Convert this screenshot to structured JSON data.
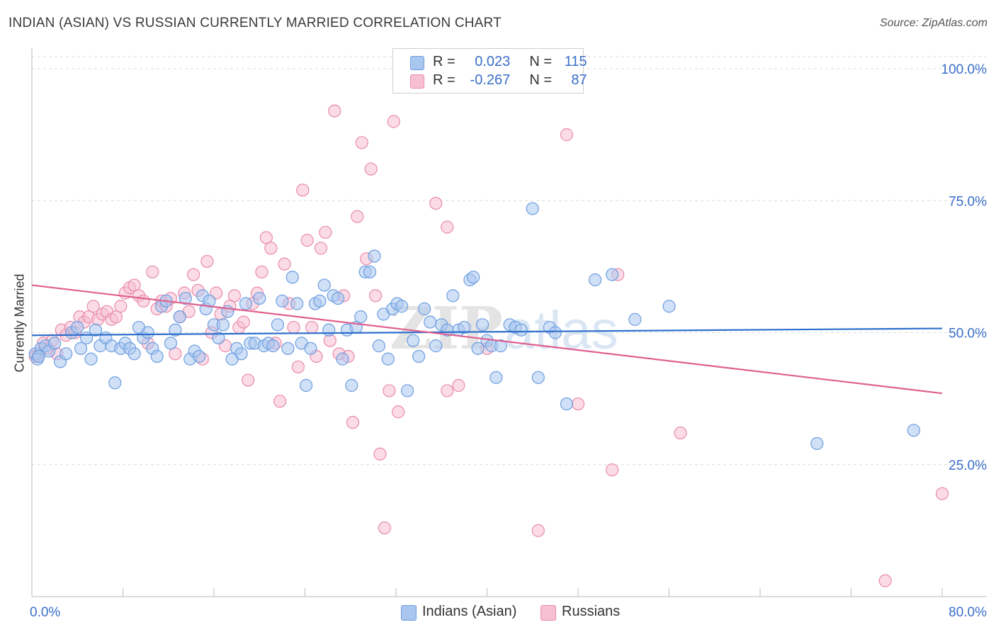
{
  "title": "INDIAN (ASIAN) VS RUSSIAN CURRENTLY MARRIED CORRELATION CHART",
  "source": "Source: ZipAtlas.com",
  "watermark": "ZIPatlas",
  "legend": {
    "rows": [
      {
        "r_label": "R =",
        "r_value": "0.023",
        "n_label": "N =",
        "n_value": "115",
        "color": "#a9c6ef",
        "border": "#6d9ee0"
      },
      {
        "r_label": "R =",
        "r_value": "-0.267",
        "n_label": "N =",
        "n_value": "87",
        "color": "#f7c0d2",
        "border": "#e98aab"
      }
    ]
  },
  "bottom_legend": {
    "items": [
      {
        "label": "Indians (Asian)",
        "color": "#a9c6ef",
        "border": "#6d9ee0"
      },
      {
        "label": "Russians",
        "color": "#f7c0d2",
        "border": "#e98aab"
      }
    ]
  },
  "chart_data": {
    "type": "scatter",
    "title": "INDIAN (ASIAN) VS RUSSIAN CURRENTLY MARRIED CORRELATION CHART",
    "xlabel": "",
    "ylabel": "Currently Married",
    "xlim": [
      0,
      80
    ],
    "ylim": [
      0,
      105
    ],
    "x_tick_labels": [
      "0.0%",
      "80.0%"
    ],
    "y_ticks": [
      25,
      50,
      75,
      100
    ],
    "y_tick_labels": [
      "25.0%",
      "50.0%",
      "75.0%",
      "100.0%"
    ],
    "grid": true,
    "series": [
      {
        "name": "Indians (Asian)",
        "color": "#6d9ee0",
        "fill": "#a9c6ef",
        "line_color": "#2f6fcc",
        "trend": {
          "x": [
            0,
            80
          ],
          "y": [
            49.5,
            50.8
          ]
        },
        "points": [
          [
            0.3,
            46
          ],
          [
            0.5,
            45
          ],
          [
            0.8,
            47
          ],
          [
            1.2,
            47.5
          ],
          [
            1.5,
            46.5
          ],
          [
            2.0,
            48
          ],
          [
            2.5,
            44.5
          ],
          [
            3.0,
            46
          ],
          [
            3.5,
            50
          ],
          [
            4.0,
            51
          ],
          [
            4.3,
            47
          ],
          [
            4.8,
            49
          ],
          [
            5.2,
            45
          ],
          [
            5.6,
            50.5
          ],
          [
            6.0,
            47.5
          ],
          [
            6.5,
            49
          ],
          [
            7.0,
            47.5
          ],
          [
            7.3,
            40.5
          ],
          [
            7.8,
            47
          ],
          [
            8.2,
            48
          ],
          [
            8.6,
            47
          ],
          [
            9.0,
            46
          ],
          [
            9.4,
            51
          ],
          [
            9.8,
            49
          ],
          [
            10.2,
            50
          ],
          [
            10.6,
            47
          ],
          [
            11.0,
            45.5
          ],
          [
            11.4,
            55
          ],
          [
            11.8,
            56
          ],
          [
            12.2,
            48
          ],
          [
            12.6,
            50.5
          ],
          [
            13.0,
            53
          ],
          [
            13.5,
            56.5
          ],
          [
            13.9,
            45
          ],
          [
            14.3,
            46.5
          ],
          [
            14.7,
            45.5
          ],
          [
            15.0,
            57
          ],
          [
            15.3,
            54.5
          ],
          [
            15.6,
            56
          ],
          [
            16.0,
            51.5
          ],
          [
            16.4,
            49
          ],
          [
            16.8,
            51.5
          ],
          [
            17.2,
            54
          ],
          [
            17.6,
            45
          ],
          [
            18.0,
            47
          ],
          [
            18.4,
            46
          ],
          [
            18.8,
            55.5
          ],
          [
            19.2,
            48
          ],
          [
            19.6,
            48
          ],
          [
            20.0,
            56.5
          ],
          [
            20.4,
            47.5
          ],
          [
            20.8,
            48
          ],
          [
            21.2,
            47.5
          ],
          [
            21.6,
            51.5
          ],
          [
            22.0,
            56
          ],
          [
            22.5,
            47
          ],
          [
            22.9,
            60.5
          ],
          [
            23.3,
            55.5
          ],
          [
            23.7,
            48
          ],
          [
            24.1,
            40
          ],
          [
            24.5,
            47
          ],
          [
            24.9,
            55.5
          ],
          [
            25.3,
            56
          ],
          [
            25.7,
            59
          ],
          [
            26.1,
            50.5
          ],
          [
            26.5,
            57
          ],
          [
            26.9,
            56.5
          ],
          [
            27.3,
            45
          ],
          [
            27.7,
            50.5
          ],
          [
            28.1,
            40
          ],
          [
            28.5,
            51
          ],
          [
            28.9,
            53
          ],
          [
            29.3,
            61.5
          ],
          [
            29.7,
            61.5
          ],
          [
            30.1,
            64.5
          ],
          [
            30.5,
            47.5
          ],
          [
            30.9,
            53.5
          ],
          [
            31.3,
            45
          ],
          [
            31.7,
            54.5
          ],
          [
            32.1,
            55.5
          ],
          [
            32.5,
            55
          ],
          [
            33.0,
            39
          ],
          [
            33.5,
            48.5
          ],
          [
            34.0,
            45.5
          ],
          [
            34.5,
            54.5
          ],
          [
            35.0,
            52
          ],
          [
            35.5,
            47.5
          ],
          [
            36.0,
            51.5
          ],
          [
            36.5,
            50.5
          ],
          [
            37.0,
            57
          ],
          [
            37.5,
            50.5
          ],
          [
            38.0,
            51
          ],
          [
            38.5,
            60
          ],
          [
            38.8,
            60.5
          ],
          [
            39.2,
            47
          ],
          [
            39.6,
            51.5
          ],
          [
            40.0,
            48.5
          ],
          [
            40.4,
            47.5
          ],
          [
            40.8,
            41.5
          ],
          [
            41.2,
            47.5
          ],
          [
            42.0,
            51.5
          ],
          [
            42.5,
            51
          ],
          [
            43.0,
            50.5
          ],
          [
            44.0,
            73.5
          ],
          [
            44.5,
            41.5
          ],
          [
            45.5,
            51
          ],
          [
            46.0,
            50
          ],
          [
            47.0,
            36.5
          ],
          [
            49.5,
            60
          ],
          [
            51.0,
            61
          ],
          [
            53.0,
            52.5
          ],
          [
            56.0,
            55
          ],
          [
            69.0,
            29
          ],
          [
            77.5,
            31.5
          ],
          [
            0.6,
            45.5
          ]
        ]
      },
      {
        "name": "Russians",
        "color": "#e98aab",
        "fill": "#f7c0d2",
        "line_color": "#e0608f",
        "trend": {
          "x": [
            0,
            80
          ],
          "y": [
            59,
            38.5
          ]
        },
        "points": [
          [
            0.3,
            45.5
          ],
          [
            0.6,
            46
          ],
          [
            1.0,
            48
          ],
          [
            1.4,
            47
          ],
          [
            1.8,
            48.5
          ],
          [
            2.2,
            46
          ],
          [
            2.6,
            50.5
          ],
          [
            3.0,
            49.5
          ],
          [
            3.4,
            51
          ],
          [
            3.8,
            50
          ],
          [
            4.2,
            53
          ],
          [
            4.6,
            52
          ],
          [
            5.0,
            53
          ],
          [
            5.4,
            55
          ],
          [
            5.8,
            52.5
          ],
          [
            6.2,
            53.5
          ],
          [
            6.6,
            54
          ],
          [
            7.0,
            52.5
          ],
          [
            7.4,
            53
          ],
          [
            7.8,
            55
          ],
          [
            8.2,
            57.5
          ],
          [
            8.6,
            58.5
          ],
          [
            9.0,
            59
          ],
          [
            9.4,
            57
          ],
          [
            9.8,
            56
          ],
          [
            10.2,
            48
          ],
          [
            10.6,
            61.5
          ],
          [
            11.0,
            54.5
          ],
          [
            11.4,
            56
          ],
          [
            11.8,
            55
          ],
          [
            12.2,
            56.5
          ],
          [
            12.6,
            46
          ],
          [
            13.0,
            53
          ],
          [
            13.4,
            57.5
          ],
          [
            13.8,
            54
          ],
          [
            14.2,
            61
          ],
          [
            14.6,
            58
          ],
          [
            15.0,
            45
          ],
          [
            15.4,
            63.5
          ],
          [
            15.8,
            50
          ],
          [
            16.2,
            57.5
          ],
          [
            16.6,
            53.5
          ],
          [
            17.0,
            47.5
          ],
          [
            17.4,
            55
          ],
          [
            17.8,
            57
          ],
          [
            18.2,
            51
          ],
          [
            18.6,
            52
          ],
          [
            19.0,
            41
          ],
          [
            19.4,
            55.5
          ],
          [
            19.8,
            57.5
          ],
          [
            20.2,
            61.5
          ],
          [
            20.6,
            68
          ],
          [
            21.0,
            66
          ],
          [
            21.4,
            48
          ],
          [
            21.8,
            37
          ],
          [
            22.2,
            63
          ],
          [
            22.6,
            55.5
          ],
          [
            23.0,
            51
          ],
          [
            23.4,
            43.5
          ],
          [
            23.8,
            77
          ],
          [
            24.2,
            67.5
          ],
          [
            24.6,
            51
          ],
          [
            25.0,
            45.5
          ],
          [
            25.4,
            66
          ],
          [
            25.8,
            69
          ],
          [
            26.2,
            48.5
          ],
          [
            26.6,
            92
          ],
          [
            27.0,
            46
          ],
          [
            27.4,
            57
          ],
          [
            27.8,
            45.5
          ],
          [
            28.2,
            33
          ],
          [
            28.6,
            72
          ],
          [
            29.0,
            86
          ],
          [
            29.4,
            64
          ],
          [
            29.8,
            81
          ],
          [
            30.2,
            57
          ],
          [
            30.6,
            27
          ],
          [
            31.0,
            13
          ],
          [
            31.4,
            39
          ],
          [
            31.8,
            90
          ],
          [
            32.2,
            35
          ],
          [
            35.5,
            74.5
          ],
          [
            36.5,
            70
          ],
          [
            36.5,
            39
          ],
          [
            37.5,
            40
          ],
          [
            44.5,
            12.5
          ],
          [
            47.0,
            87.5
          ]
        ]
      }
    ]
  },
  "extra_points_russians": {
    "points": [
      [
        40.0,
        47
      ],
      [
        48.0,
        36.5
      ],
      [
        51.5,
        61
      ],
      [
        57.0,
        31
      ],
      [
        51.0,
        24
      ],
      [
        80.0,
        19.5
      ],
      [
        75.0,
        3
      ]
    ]
  }
}
